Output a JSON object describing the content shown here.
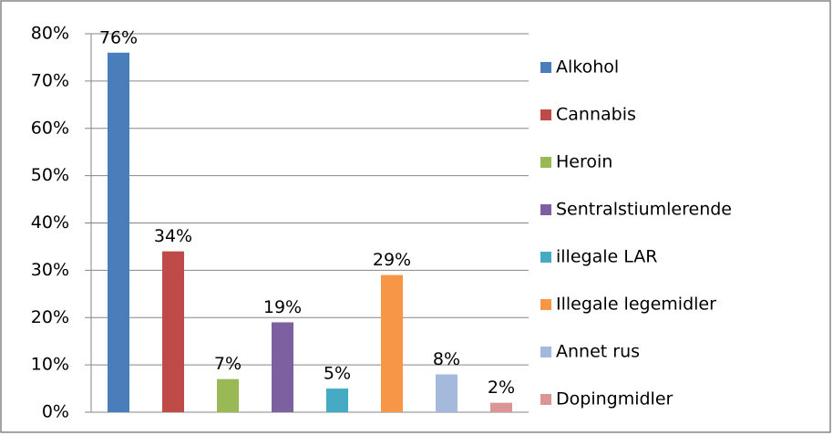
{
  "chart_data": {
    "type": "bar",
    "series": [
      {
        "name": "Alkohol",
        "color": "#4a7ebb",
        "values": [
          76
        ],
        "value_labels": [
          "76%"
        ]
      },
      {
        "name": "Cannabis",
        "color": "#be4b48",
        "values": [
          34
        ],
        "value_labels": [
          "34%"
        ]
      },
      {
        "name": "Heroin",
        "color": "#98b954",
        "values": [
          7
        ],
        "value_labels": [
          "7%"
        ]
      },
      {
        "name": "Sentralstiumlerende",
        "color": "#7d60a0",
        "values": [
          19
        ],
        "value_labels": [
          "19%"
        ]
      },
      {
        "name": "illegale LAR",
        "color": "#46aac5",
        "values": [
          5
        ],
        "value_labels": [
          "5%"
        ]
      },
      {
        "name": "Illegale legemidler",
        "color": "#f79646",
        "values": [
          29
        ],
        "value_labels": [
          "29%"
        ]
      },
      {
        "name": "Annet rus",
        "color": "#a5b9dc",
        "values": [
          8
        ],
        "value_labels": [
          "8%"
        ]
      },
      {
        "name": "Dopingmidler",
        "color": "#d99694",
        "values": [
          2
        ],
        "value_labels": [
          "2%"
        ]
      }
    ],
    "ylim": [
      0,
      80
    ],
    "yticks": [
      {
        "value": 0,
        "label": "0%"
      },
      {
        "value": 10,
        "label": "10%"
      },
      {
        "value": 20,
        "label": "20%"
      },
      {
        "value": 30,
        "label": "30%"
      },
      {
        "value": 40,
        "label": "40%"
      },
      {
        "value": 50,
        "label": "50%"
      },
      {
        "value": 60,
        "label": "60%"
      },
      {
        "value": 70,
        "label": "70%"
      },
      {
        "value": 80,
        "label": "80%"
      }
    ],
    "grid": true,
    "legend": "right"
  }
}
